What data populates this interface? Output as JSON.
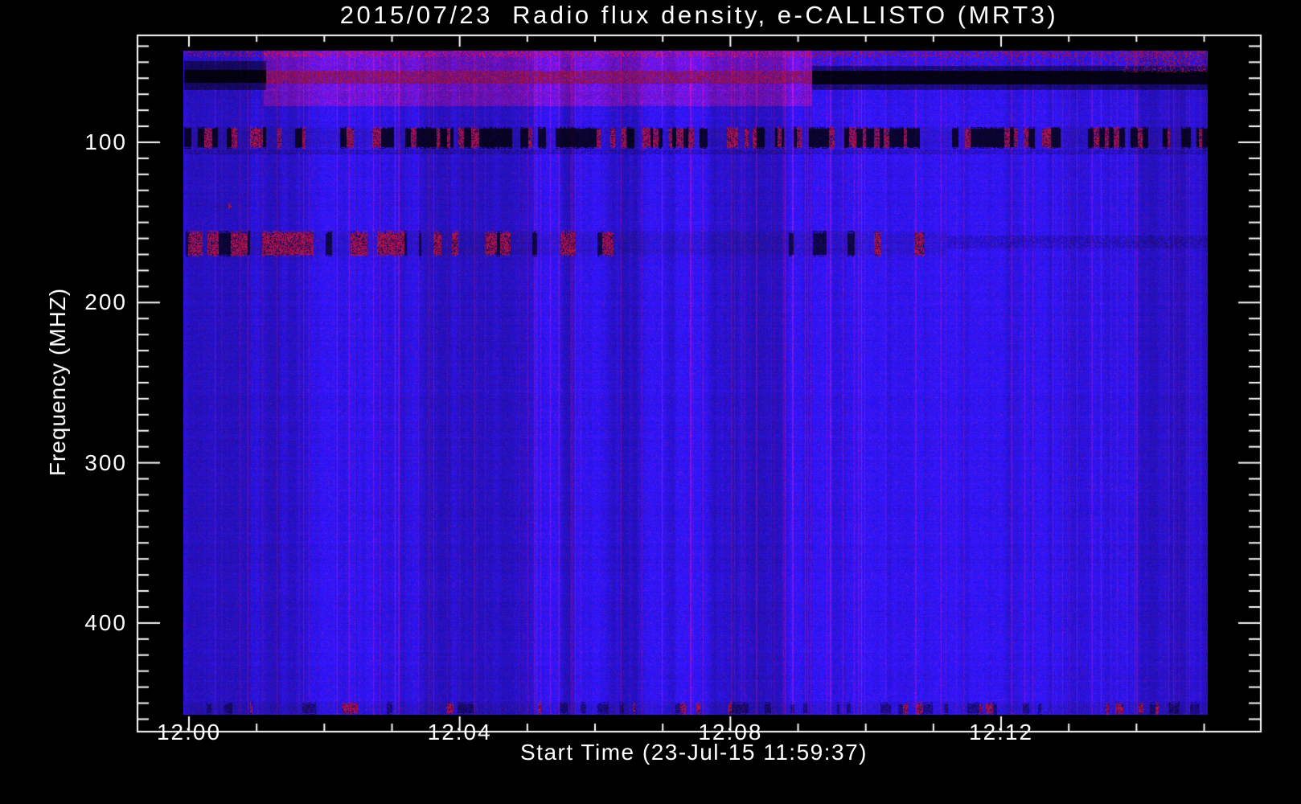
{
  "chart_data": {
    "type": "heatmap",
    "subtype": "radio-spectrogram",
    "title": "2015/07/23  Radio flux density, e-CALLISTO (MRT3)",
    "xlabel": "Start Time (23-Jul-15 11:59:37)",
    "ylabel": "Frequency (MHZ)",
    "date": "2015/07/23",
    "instrument": "e-CALLISTO (MRT3)",
    "start_time": "11:59:37",
    "x_axis": {
      "label": "Start Time (23-Jul-15 11:59:37)",
      "ticks": [
        {
          "label": "12:00",
          "minutes": 0
        },
        {
          "label": "12:04",
          "minutes": 4
        },
        {
          "label": "12:08",
          "minutes": 8
        },
        {
          "label": "12:12",
          "minutes": 12
        }
      ],
      "minor_step_minutes": 1,
      "minor_range_minutes": [
        1,
        15
      ],
      "frame_range_minutes": [
        -0.76,
        15.83
      ],
      "data_range_minutes": [
        -0.08,
        15.05
      ]
    },
    "y_axis": {
      "label": "Frequency (MHZ)",
      "inverted": true,
      "ticks": [
        {
          "label": "100",
          "mhz": 100
        },
        {
          "label": "200",
          "mhz": 200
        },
        {
          "label": "300",
          "mhz": 300
        },
        {
          "label": "400",
          "mhz": 400
        }
      ],
      "minor_step_mhz": 10,
      "minor_range_mhz": [
        40,
        460
      ],
      "frame_range_mhz": [
        33,
        468
      ],
      "data_range_mhz": [
        42,
        457
      ]
    },
    "colormap": {
      "background": "#000000",
      "axis": "#ffffff",
      "text": "#ffffff",
      "base_blue": "#2d0ce0",
      "noise_purple": "#6e1eb0",
      "interference_red": "#8c2050",
      "dark_navy": "#0a0736",
      "band_black": "#06041c"
    },
    "features": [
      {
        "name": "top-edge-red-speckles",
        "kind": "speckle",
        "t": [
          -0.08,
          15.05
        ],
        "f": [
          42,
          46.5
        ],
        "red_prob": 0.28
      },
      {
        "name": "broadband-interference-block",
        "kind": "tint",
        "t": [
          1.1,
          9.2
        ],
        "f": [
          42,
          77
        ],
        "red_add": 58
      },
      {
        "name": "interference-block-core",
        "kind": "speckle",
        "t": [
          1.1,
          9.2
        ],
        "f": [
          55,
          63
        ],
        "red_prob": 0.5,
        "darken": 0.8
      },
      {
        "name": "left-dark-band",
        "kind": "darken",
        "t": [
          -0.08,
          1.13
        ],
        "f": [
          49,
          67
        ],
        "factor": 0.5
      },
      {
        "name": "left-dark-band-core",
        "kind": "darken",
        "t": [
          -0.08,
          1.13
        ],
        "f": [
          54.5,
          62.5
        ],
        "factor": 0.22,
        "streak_prob": 0.35
      },
      {
        "name": "right-dark-band",
        "kind": "darken",
        "t": [
          9.2,
          15.05
        ],
        "f": [
          52,
          67
        ],
        "factor": 0.55
      },
      {
        "name": "right-dark-band-core",
        "kind": "darken",
        "t": [
          9.2,
          15.05
        ],
        "f": [
          55,
          63.5
        ],
        "factor": 0.22,
        "streak_prob": 0.3
      },
      {
        "name": "right-top-red-speckles",
        "kind": "speckle",
        "t": [
          9.2,
          15.05
        ],
        "f": [
          42,
          52
        ],
        "red_prob": 0.12
      },
      {
        "name": "far-right-red-columns",
        "kind": "speckle",
        "t": [
          13.8,
          15.05
        ],
        "f": [
          42,
          56
        ],
        "red_prob": 0.22
      },
      {
        "name": "fm-broadcast-rfi-band",
        "kind": "rfi",
        "t": [
          -0.08,
          15.05
        ],
        "f": [
          90,
          104
        ],
        "dark_prob": 0.4,
        "red_prob": 0.33,
        "dark_factor": 0.2,
        "run_len": [
          2,
          5
        ]
      },
      {
        "name": "fm-band-lower-edge",
        "kind": "darken",
        "t": [
          -0.08,
          15.05
        ],
        "f": [
          104.5,
          107.5
        ],
        "factor": 0.85
      },
      {
        "name": "vhf-rfi-strong",
        "kind": "rfi",
        "t": [
          -0.05,
          4.75
        ],
        "f": [
          155,
          171
        ],
        "dark_prob": 0.26,
        "red_prob": 0.3,
        "dark_factor": 0.3,
        "run_len": [
          6,
          16
        ]
      },
      {
        "name": "vhf-rfi-sporadic",
        "kind": "rfi",
        "t": [
          4.75,
          11.2
        ],
        "f": [
          155,
          171
        ],
        "dark_prob": 0.1,
        "red_prob": 0.09,
        "dark_factor": 0.3,
        "run_len": [
          6,
          16
        ]
      },
      {
        "name": "vhf-rfi-faint-line",
        "kind": "darken",
        "t": [
          11.2,
          15.05
        ],
        "f": [
          158,
          166
        ],
        "factor": 0.85
      },
      {
        "name": "isolated-red-dot",
        "kind": "rfi",
        "t": [
          0.35,
          0.62
        ],
        "f": [
          138,
          142
        ],
        "dark_prob": 0.15,
        "red_prob": 0.5,
        "dark_factor": 0.35,
        "run_len": [
          3,
          8
        ]
      },
      {
        "name": "bottom-edge-band",
        "kind": "rfi",
        "t": [
          -0.08,
          15.05
        ],
        "f": [
          449,
          457
        ],
        "dark_prob": 0.3,
        "red_prob": 0.1,
        "dark_factor": 0.55,
        "run_len": [
          2,
          8
        ]
      }
    ],
    "legend": null,
    "grid": false
  }
}
